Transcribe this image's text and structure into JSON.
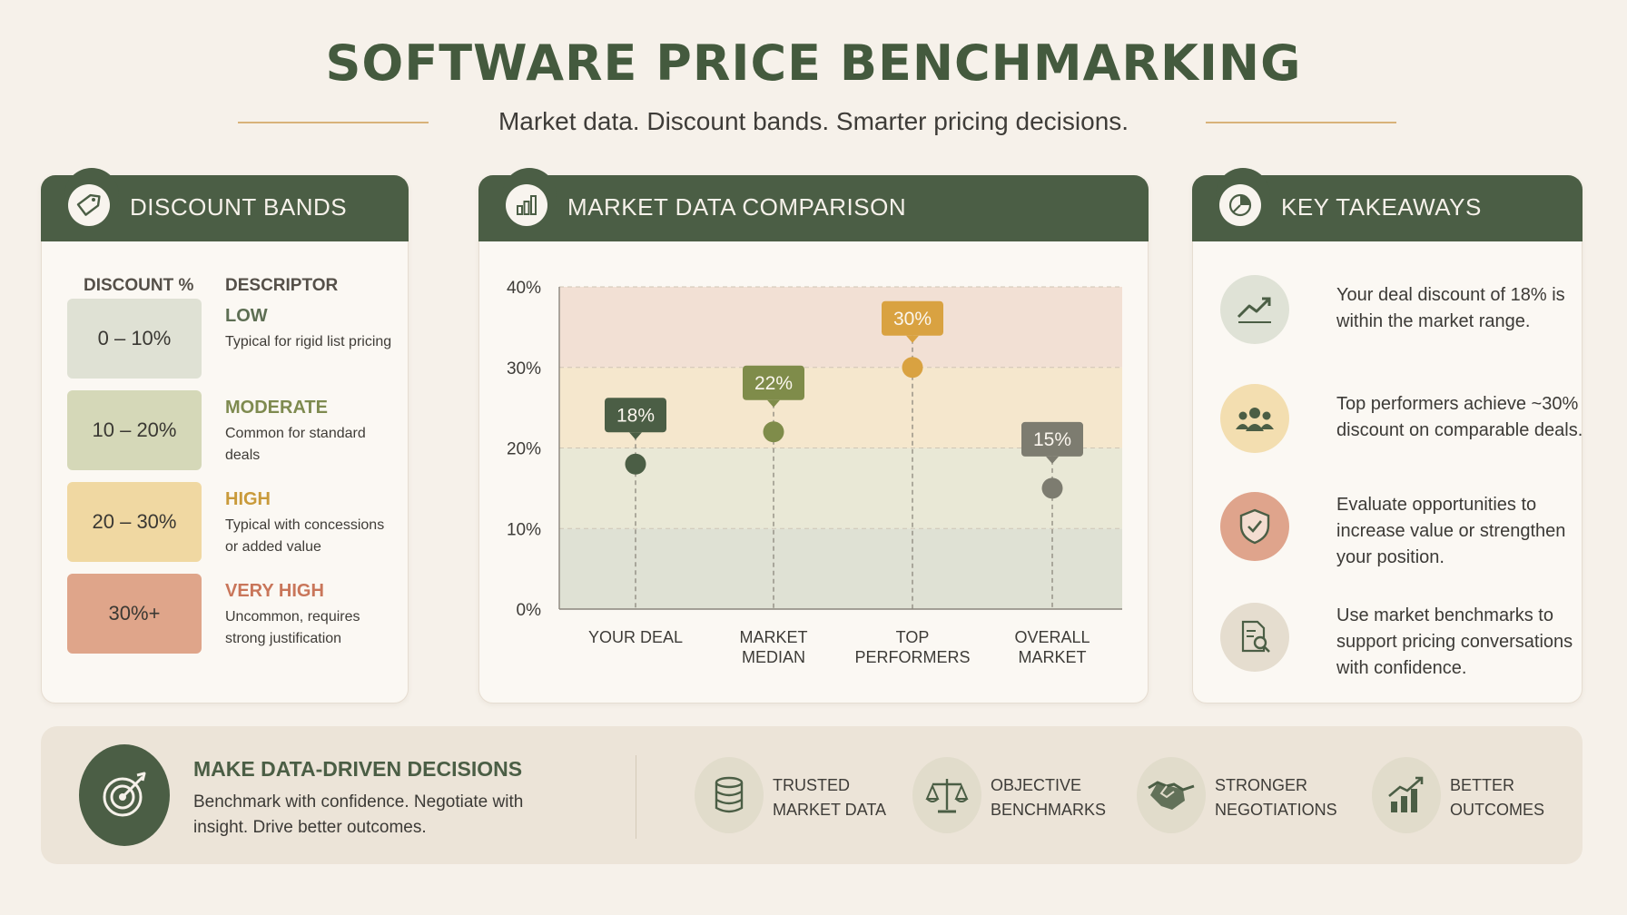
{
  "header": {
    "title": "SOFTWARE PRICE BENCHMARKING",
    "subtitle": "Market data. Discount bands. Smarter pricing decisions."
  },
  "discount_bands": {
    "title": "DISCOUNT BANDS",
    "col_discount": "DISCOUNT %",
    "col_descriptor": "DESCRIPTOR",
    "icon": "tag-icon",
    "rows": [
      {
        "range": "0 – 10%",
        "name": "LOW",
        "desc": "Typical for rigid list pricing",
        "swatch": "#dfe1d4",
        "name_color": "#5d6e53"
      },
      {
        "range": "10 – 20%",
        "name": "MODERATE",
        "desc": "Common for standard deals",
        "swatch": "#d5d8b8",
        "name_color": "#7e8a4f"
      },
      {
        "range": "20 – 30%",
        "name": "HIGH",
        "desc": "Typical with concessions or added value",
        "swatch": "#f0d8a2",
        "name_color": "#c99a3a"
      },
      {
        "range": "30%+",
        "name": "VERY HIGH",
        "desc": "Uncommon, requires strong justification",
        "swatch": "#dfa58a",
        "name_color": "#c9765a"
      }
    ]
  },
  "market_panel": {
    "title": "MARKET DATA COMPARISON",
    "icon": "bar-chart-icon"
  },
  "chart_data": {
    "type": "scatter",
    "ylabel": "DISCOUNT %",
    "ylim": [
      0,
      40
    ],
    "yticks": [
      "0%",
      "10%",
      "20%",
      "30%",
      "40%"
    ],
    "ytick_values": [
      0,
      10,
      20,
      30,
      40
    ],
    "categories": [
      [
        "YOUR DEAL"
      ],
      [
        "MARKET",
        "MEDIAN"
      ],
      [
        "TOP",
        "PERFORMERS"
      ],
      [
        "OVERALL",
        "MARKET"
      ]
    ],
    "values": [
      18,
      22,
      30,
      15
    ],
    "labels": [
      "18%",
      "22%",
      "30%",
      "15%"
    ],
    "colors": [
      "#4b5e45",
      "#7f8c4a",
      "#d9a241",
      "#7d7c70"
    ],
    "bands": [
      {
        "from": 0,
        "to": 10,
        "color": "#dfe1d4"
      },
      {
        "from": 10,
        "to": 20,
        "color": "#e9e8d6"
      },
      {
        "from": 20,
        "to": 30,
        "color": "#f5e7cd"
      },
      {
        "from": 30,
        "to": 40,
        "color": "#f2e0d4"
      }
    ],
    "grid": true
  },
  "takeaways": {
    "title": "KEY TAKEAWAYS",
    "icon": "pie-chart-icon",
    "items": [
      {
        "text": "Your deal discount of 18% is within the market range.",
        "icon": "trend-up-icon",
        "bg": "#dfe2d6"
      },
      {
        "text": "Top performers achieve ~30% discount on comparable deals.",
        "icon": "team-icon",
        "bg": "#f3deb0"
      },
      {
        "text": "Evaluate opportunities to increase value or strengthen your position.",
        "icon": "shield-icon",
        "bg": "#dfa48c"
      },
      {
        "text": "Use market benchmarks to support pricing conversations with confidence.",
        "icon": "document-search-icon",
        "bg": "#e5ddcf"
      }
    ]
  },
  "bottom": {
    "title": "MAKE DATA-DRIVEN DECISIONS",
    "text": "Benchmark with confidence. Negotiate with insight. Drive better outcomes.",
    "icon": "target-icon",
    "features": [
      {
        "line1": "TRUSTED",
        "line2": "MARKET DATA",
        "icon": "database-icon"
      },
      {
        "line1": "OBJECTIVE",
        "line2": "BENCHMARKS",
        "icon": "scale-icon"
      },
      {
        "line1": "STRONGER",
        "line2": "NEGOTIATIONS",
        "icon": "handshake-icon"
      },
      {
        "line1": "BETTER",
        "line2": "OUTCOMES",
        "icon": "growth-icon"
      }
    ]
  }
}
